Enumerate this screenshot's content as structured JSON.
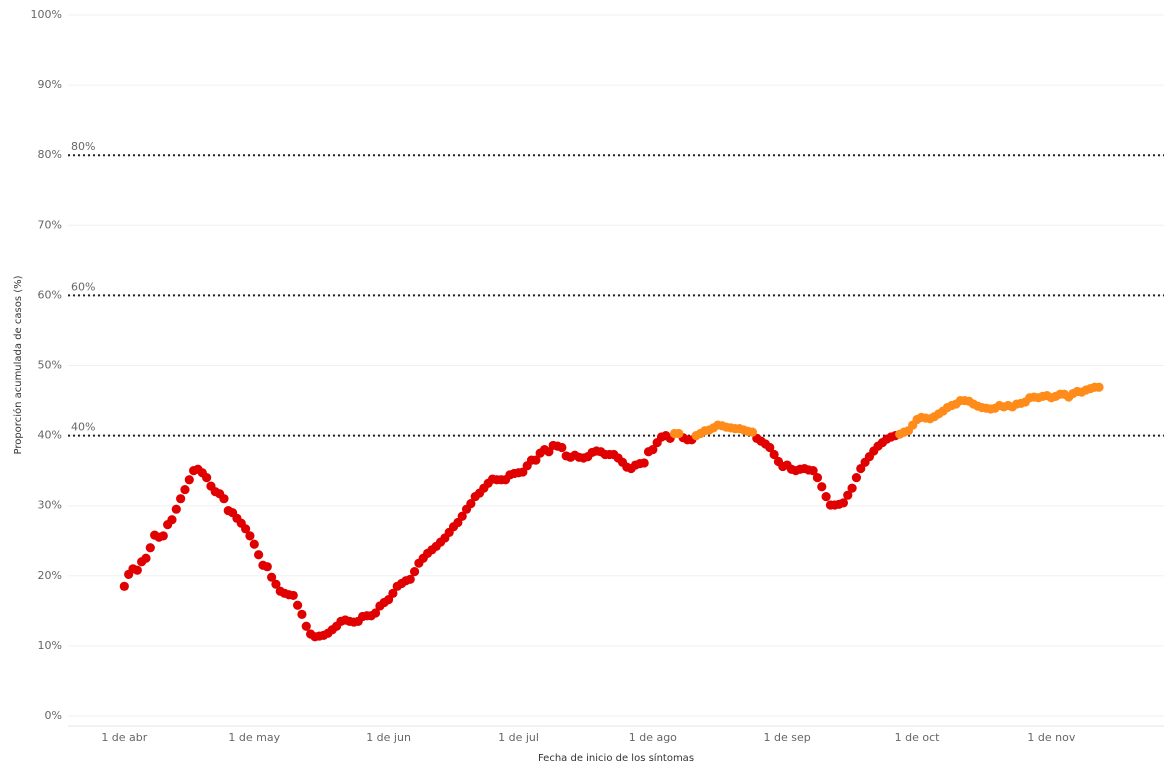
{
  "chart_data": {
    "type": "scatter",
    "x_label": "Fecha de inicio de los síntomas",
    "y_label": "Proporción acumulada de casos (%)",
    "xlim": [
      -13,
      240
    ],
    "xticks": [
      {
        "value": 0,
        "label": "1 de abr"
      },
      {
        "value": 30,
        "label": "1 de may"
      },
      {
        "value": 61,
        "label": "1 de jun"
      },
      {
        "value": 91,
        "label": "1 de jul"
      },
      {
        "value": 122,
        "label": "1 de ago"
      },
      {
        "value": 153,
        "label": "1 de sep"
      },
      {
        "value": 183,
        "label": "1 de oct"
      },
      {
        "value": 214,
        "label": "1 de nov"
      }
    ],
    "ylim": [
      0,
      100
    ],
    "yticks": [
      {
        "value": 0,
        "label": "0%"
      },
      {
        "value": 10,
        "label": "10%"
      },
      {
        "value": 20,
        "label": "20%"
      },
      {
        "value": 30,
        "label": "30%"
      },
      {
        "value": 40,
        "label": "40%"
      },
      {
        "value": 50,
        "label": "50%"
      },
      {
        "value": 60,
        "label": "60%"
      },
      {
        "value": 70,
        "label": "70%"
      },
      {
        "value": 80,
        "label": "80%"
      },
      {
        "value": 90,
        "label": "90%"
      },
      {
        "value": 100,
        "label": "100%"
      }
    ],
    "grid": true,
    "reference_lines": [
      {
        "value": 40,
        "label": "40%"
      },
      {
        "value": 60,
        "label": "60%"
      },
      {
        "value": 80,
        "label": "80%"
      }
    ],
    "x": [
      0,
      1,
      2,
      3,
      4,
      5,
      6,
      7,
      8,
      9,
      10,
      11,
      12,
      13,
      14,
      15,
      16,
      17,
      18,
      19,
      20,
      21,
      22,
      23,
      24,
      25,
      26,
      27,
      28,
      29,
      30,
      31,
      32,
      33,
      34,
      35,
      36,
      37,
      38,
      39,
      40,
      41,
      42,
      43,
      44,
      45,
      46,
      47,
      48,
      49,
      50,
      51,
      52,
      53,
      54,
      55,
      56,
      57,
      58,
      59,
      60,
      61,
      62,
      63,
      64,
      65,
      66,
      67,
      68,
      69,
      70,
      71,
      72,
      73,
      74,
      75,
      76,
      77,
      78,
      79,
      80,
      81,
      82,
      83,
      84,
      85,
      86,
      87,
      88,
      89,
      90,
      91,
      92,
      93,
      94,
      95,
      96,
      97,
      98,
      99,
      100,
      101,
      102,
      103,
      104,
      105,
      106,
      107,
      108,
      109,
      110,
      111,
      112,
      113,
      114,
      115,
      116,
      117,
      118,
      119,
      120,
      121,
      122,
      123,
      124,
      125,
      126,
      127,
      128,
      129,
      130,
      131,
      132,
      133,
      134,
      135,
      136,
      137,
      138,
      139,
      140,
      141,
      142,
      143,
      144,
      145,
      146,
      147,
      148,
      149,
      150,
      151,
      152,
      153,
      154,
      155,
      156,
      157,
      158,
      159,
      160,
      161,
      162,
      163,
      164,
      165,
      166,
      167,
      168,
      169,
      170,
      171,
      172,
      173,
      174,
      175,
      176,
      177,
      178,
      179,
      180,
      181,
      182,
      183,
      184,
      185,
      186,
      187,
      188,
      189,
      190,
      191,
      192,
      193,
      194,
      195,
      196,
      197,
      198,
      199,
      200,
      201,
      202,
      203,
      204,
      205,
      206,
      207,
      208,
      209,
      210,
      211,
      212,
      213,
      214,
      215,
      216,
      217,
      218,
      219,
      220,
      221,
      222,
      223,
      224,
      225
    ],
    "series": [
      {
        "color": "#e00000",
        "values": [
          18.5,
          20.2,
          21,
          20.8,
          22,
          22.5,
          24,
          25.8,
          25.5,
          25.7,
          27.3,
          28,
          29.5,
          31,
          32.3,
          33.7,
          35,
          35.2,
          34.7,
          34,
          32.8,
          32,
          31.7,
          31,
          29.3,
          29,
          28.2,
          27.5,
          26.7,
          25.7,
          24.5,
          23,
          21.5,
          21.3,
          19.8,
          18.8,
          17.8,
          17.5,
          17.3,
          17.2,
          15.8,
          14.5,
          12.8,
          11.7,
          11.3,
          11.4,
          11.5,
          11.8,
          12.3,
          12.8,
          13.5,
          13.7,
          13.5,
          13.4,
          13.5,
          14.2,
          14.3,
          14.3,
          14.7,
          15.7,
          16.2,
          16.6,
          17.5,
          18.5,
          18.9,
          19.3,
          19.5,
          20.6,
          21.8,
          22.5,
          23.2,
          23.7,
          24.2,
          24.8,
          25.4,
          26.2,
          27,
          27.6,
          28.5,
          29.5,
          30.3,
          31.3,
          31.8,
          32.5,
          33.2,
          33.8,
          33.7,
          33.7,
          33.7,
          34.4,
          34.6,
          34.7,
          34.8,
          35.7,
          36.5,
          36.5,
          37.5,
          38,
          37.7,
          38.6,
          38.5,
          38.3,
          37.1,
          36.9,
          37.2,
          36.9,
          36.8,
          37,
          37.6,
          37.8,
          37.7,
          37.3,
          37.3,
          37.3,
          36.8,
          36.2,
          35.5,
          35.3,
          35.8,
          36,
          36.1,
          37.7,
          38,
          39,
          39.8,
          40,
          39.6,
          null,
          null,
          39.7,
          39.4,
          39.4,
          null,
          null,
          null,
          null,
          null,
          null,
          null,
          null,
          null,
          null,
          null,
          null,
          null,
          null,
          39.6,
          39.2,
          38.8,
          38.3,
          37.3,
          36.3,
          35.6,
          35.8,
          35.2,
          35,
          35.2,
          35.3,
          35.1,
          35,
          34,
          32.7,
          31.3,
          30.1,
          30.1,
          30.2,
          30.4,
          31.5,
          32.5,
          34,
          35.3,
          36.2,
          37,
          37.8,
          38.5,
          39,
          39.5,
          39.8,
          40,
          null,
          null,
          null,
          null,
          null,
          null,
          null,
          null,
          null,
          null,
          null,
          null,
          null,
          null,
          null,
          null,
          null,
          null,
          null,
          null,
          null,
          null,
          null,
          null,
          null,
          null,
          null,
          null,
          null,
          null,
          null,
          null,
          null,
          null,
          null,
          null,
          null,
          null,
          null,
          null,
          null,
          null,
          null,
          null,
          null,
          null,
          null
        ]
      },
      {
        "color": "#ff8c1a",
        "values": [
          null,
          null,
          null,
          null,
          null,
          null,
          null,
          null,
          null,
          null,
          null,
          null,
          null,
          null,
          null,
          null,
          null,
          null,
          null,
          null,
          null,
          null,
          null,
          null,
          null,
          null,
          null,
          null,
          null,
          null,
          null,
          null,
          null,
          null,
          null,
          null,
          null,
          null,
          null,
          null,
          null,
          null,
          null,
          null,
          null,
          null,
          null,
          null,
          null,
          null,
          null,
          null,
          null,
          null,
          null,
          null,
          null,
          null,
          null,
          null,
          null,
          null,
          null,
          null,
          null,
          null,
          null,
          null,
          null,
          null,
          null,
          null,
          null,
          null,
          null,
          null,
          null,
          null,
          null,
          null,
          null,
          null,
          null,
          null,
          null,
          null,
          null,
          null,
          null,
          null,
          null,
          null,
          null,
          null,
          null,
          null,
          null,
          null,
          null,
          null,
          null,
          null,
          null,
          null,
          null,
          null,
          null,
          null,
          null,
          null,
          null,
          null,
          null,
          null,
          null,
          null,
          null,
          null,
          null,
          null,
          null,
          null,
          null,
          null,
          null,
          null,
          null,
          40.3,
          40.3,
          null,
          null,
          null,
          40,
          40.3,
          40.7,
          40.8,
          41.1,
          41.5,
          41.4,
          41.2,
          41.1,
          41,
          41,
          40.8,
          40.6,
          40.5,
          null,
          null,
          null,
          null,
          null,
          null,
          null,
          null,
          null,
          null,
          null,
          null,
          null,
          null,
          null,
          null,
          null,
          null,
          null,
          null,
          null,
          null,
          null,
          null,
          null,
          null,
          null,
          null,
          null,
          null,
          null,
          null,
          null,
          40.2,
          40.5,
          40.7,
          41.5,
          42.3,
          42.6,
          42.5,
          42.4,
          42.7,
          43.1,
          43.5,
          44,
          44.3,
          44.5,
          45,
          45,
          44.9,
          44.5,
          44.2,
          44,
          43.9,
          43.8,
          43.9,
          44.3,
          44.1,
          44.3,
          44.1,
          44.5,
          44.6,
          44.8,
          45.4,
          45.5,
          45.4,
          45.6,
          45.7,
          45.4,
          45.6,
          45.9,
          45.9,
          45.5,
          46,
          46.3,
          46.2,
          46.5,
          46.7,
          46.9,
          46.9
        ]
      }
    ]
  }
}
